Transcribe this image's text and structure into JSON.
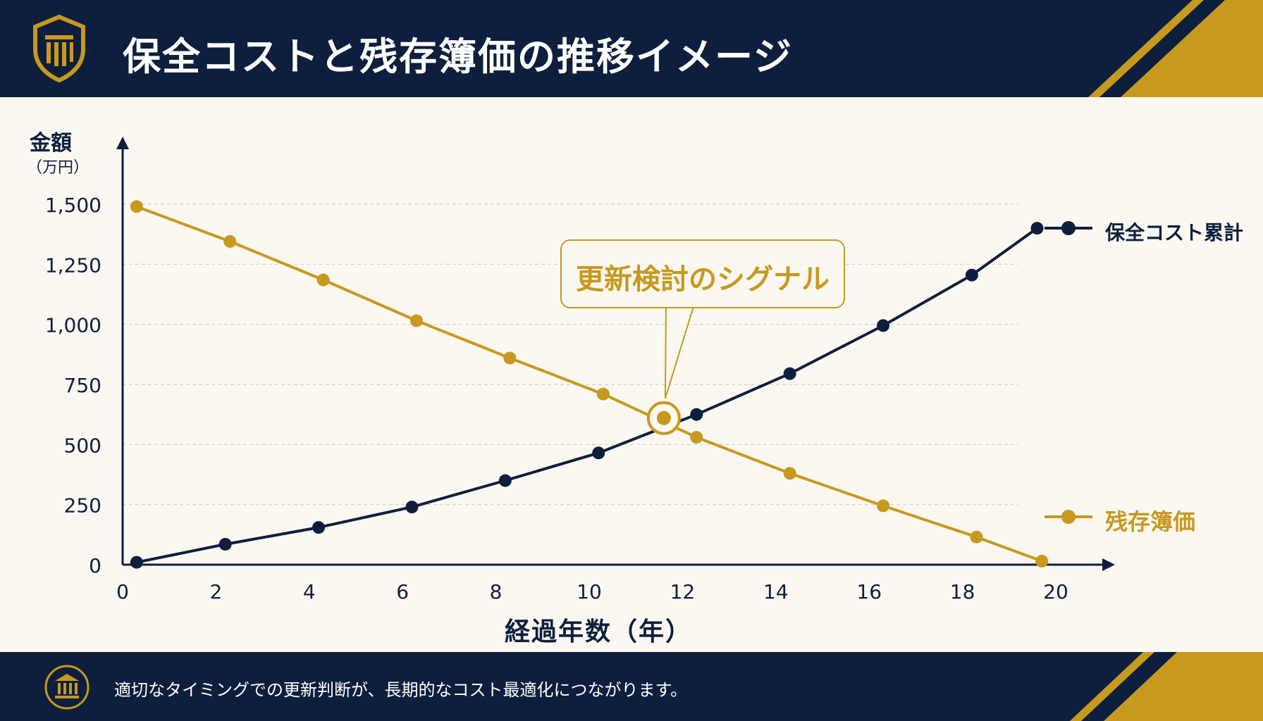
{
  "header": {
    "title": "保全コストと残存簿価の推移イメージ",
    "logo_icon": "shield-pillars-icon"
  },
  "colors": {
    "navy": "#0e1f3d",
    "gold": "#c7991f",
    "background": "#fbf8f2"
  },
  "callout": {
    "text": "更新検討のシグナル"
  },
  "footer": {
    "text": "適切なタイミングでの更新判断が、長期的なコスト最適化につながります。",
    "icon": "bank-icon"
  },
  "chart_data": {
    "type": "line",
    "ylabel": "金額",
    "yunit": "（万円）",
    "xlabel": "経過年数（年）",
    "xlim": [
      0,
      20
    ],
    "ylim": [
      0,
      1500
    ],
    "xticks": [
      "0",
      "2",
      "4",
      "6",
      "8",
      "10",
      "12",
      "14",
      "16",
      "18",
      "20"
    ],
    "yticks": [
      "0",
      "250",
      "500",
      "750",
      "1,000",
      "1,250",
      "1,500"
    ],
    "grid": "horizontal dashed",
    "legend": "right",
    "series": [
      {
        "name": "保全コスト累計",
        "color": "#0e1f3d",
        "points": [
          [
            0.3,
            10
          ],
          [
            2.2,
            85
          ],
          [
            4.2,
            155
          ],
          [
            6.2,
            240
          ],
          [
            8.2,
            350
          ],
          [
            10.2,
            465
          ],
          [
            12.3,
            625
          ],
          [
            14.3,
            795
          ],
          [
            16.3,
            995
          ],
          [
            18.2,
            1205
          ],
          [
            19.6,
            1400
          ]
        ]
      },
      {
        "name": "残存簿価",
        "color": "#c7991f",
        "points": [
          [
            0.3,
            1490
          ],
          [
            2.3,
            1345
          ],
          [
            4.3,
            1185
          ],
          [
            6.3,
            1015
          ],
          [
            8.3,
            860
          ],
          [
            10.3,
            710
          ],
          [
            12.3,
            530
          ],
          [
            14.3,
            380
          ],
          [
            16.3,
            245
          ],
          [
            18.3,
            115
          ],
          [
            19.7,
            15
          ]
        ]
      }
    ],
    "intersection": [
      11.6,
      610
    ],
    "annotation": "更新検討のシグナル"
  }
}
